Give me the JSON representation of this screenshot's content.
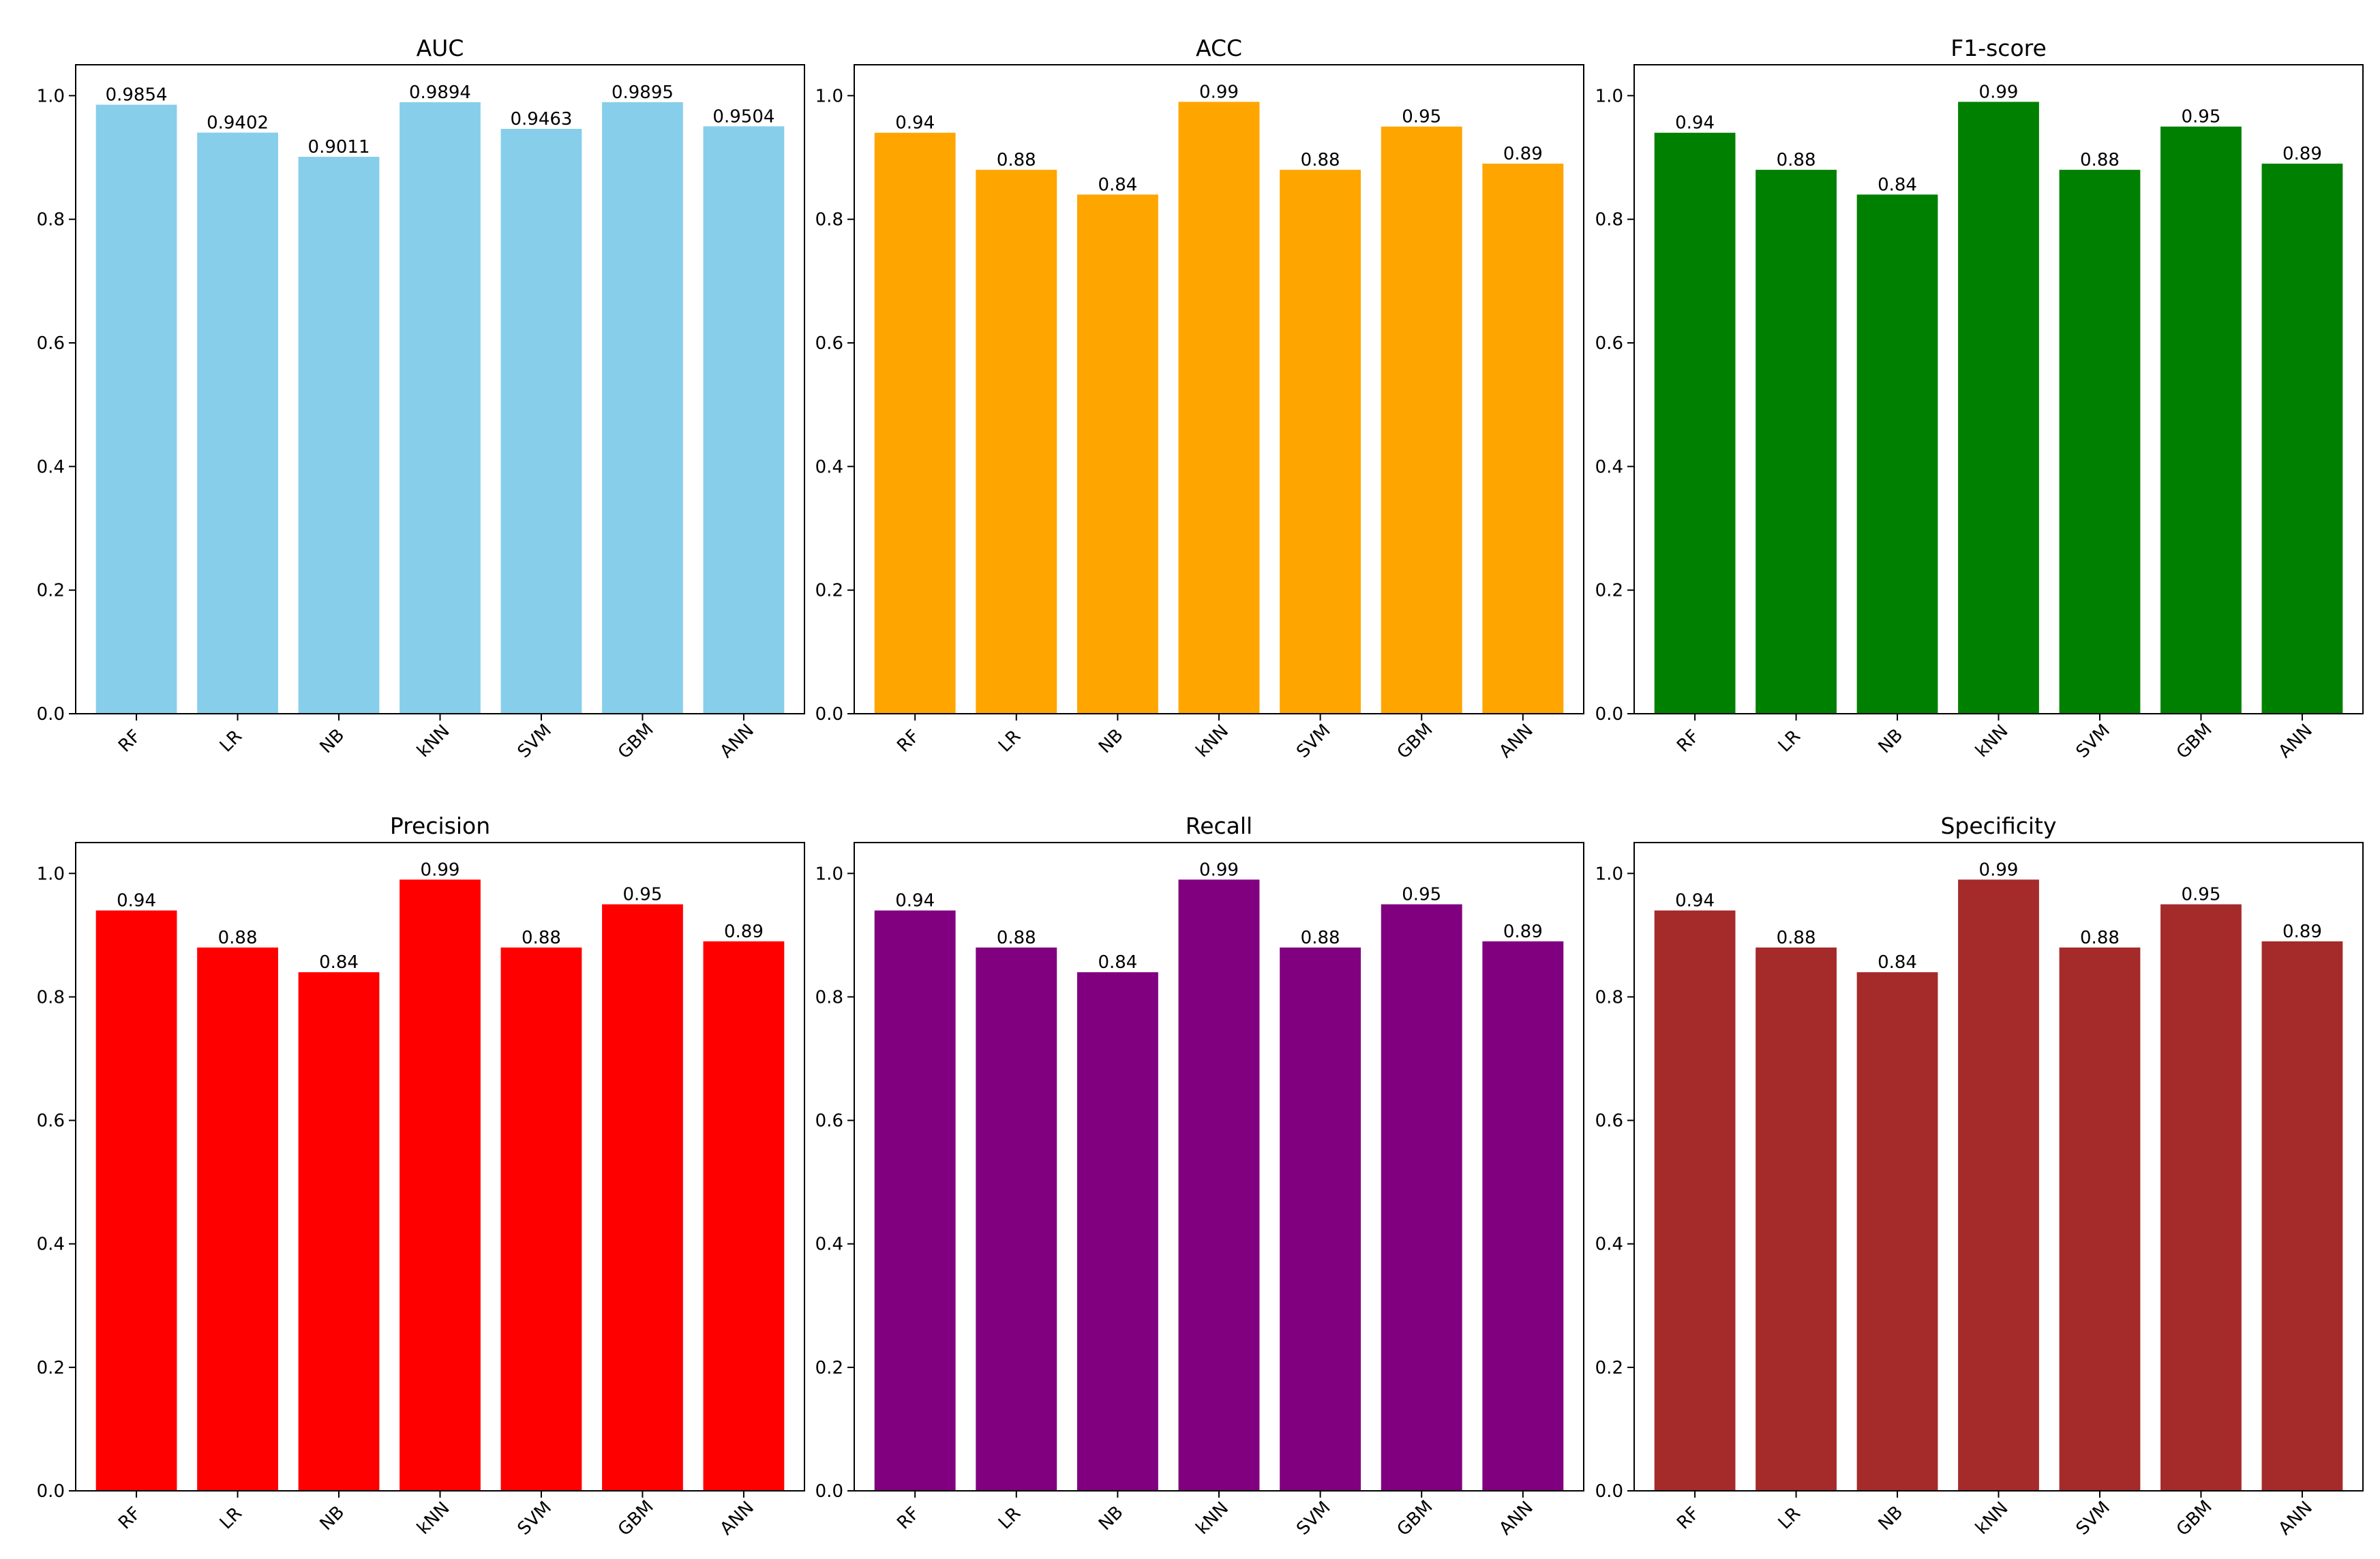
{
  "chart_data": [
    {
      "type": "bar",
      "title": "AUC",
      "color": "#87CEEB",
      "categories": [
        "RF",
        "LR",
        "NB",
        "kNN",
        "SVM",
        "GBM",
        "ANN"
      ],
      "values": [
        0.9854,
        0.9402,
        0.9011,
        0.9894,
        0.9463,
        0.9895,
        0.9504
      ],
      "value_labels": [
        "0.9854",
        "0.9402",
        "0.9011",
        "0.9894",
        "0.9463",
        "0.9895",
        "0.9504"
      ],
      "ylim": [
        0,
        1.05
      ],
      "yticks": [
        "0.0",
        "0.2",
        "0.4",
        "0.6",
        "0.8",
        "1.0"
      ],
      "xlabel": "",
      "ylabel": ""
    },
    {
      "type": "bar",
      "title": "ACC",
      "color": "#FFA500",
      "categories": [
        "RF",
        "LR",
        "NB",
        "kNN",
        "SVM",
        "GBM",
        "ANN"
      ],
      "values": [
        0.94,
        0.88,
        0.84,
        0.99,
        0.88,
        0.95,
        0.89
      ],
      "value_labels": [
        "0.94",
        "0.88",
        "0.84",
        "0.99",
        "0.88",
        "0.95",
        "0.89"
      ],
      "ylim": [
        0,
        1.05
      ],
      "yticks": [
        "0.0",
        "0.2",
        "0.4",
        "0.6",
        "0.8",
        "1.0"
      ],
      "xlabel": "",
      "ylabel": ""
    },
    {
      "type": "bar",
      "title": "F1-score",
      "color": "#008000",
      "categories": [
        "RF",
        "LR",
        "NB",
        "kNN",
        "SVM",
        "GBM",
        "ANN"
      ],
      "values": [
        0.94,
        0.88,
        0.84,
        0.99,
        0.88,
        0.95,
        0.89
      ],
      "value_labels": [
        "0.94",
        "0.88",
        "0.84",
        "0.99",
        "0.88",
        "0.95",
        "0.89"
      ],
      "ylim": [
        0,
        1.05
      ],
      "yticks": [
        "0.0",
        "0.2",
        "0.4",
        "0.6",
        "0.8",
        "1.0"
      ],
      "xlabel": "",
      "ylabel": ""
    },
    {
      "type": "bar",
      "title": "Precision",
      "color": "#FF0000",
      "categories": [
        "RF",
        "LR",
        "NB",
        "kNN",
        "SVM",
        "GBM",
        "ANN"
      ],
      "values": [
        0.94,
        0.88,
        0.84,
        0.99,
        0.88,
        0.95,
        0.89
      ],
      "value_labels": [
        "0.94",
        "0.88",
        "0.84",
        "0.99",
        "0.88",
        "0.95",
        "0.89"
      ],
      "ylim": [
        0,
        1.05
      ],
      "yticks": [
        "0.0",
        "0.2",
        "0.4",
        "0.6",
        "0.8",
        "1.0"
      ],
      "xlabel": "",
      "ylabel": ""
    },
    {
      "type": "bar",
      "title": "Recall",
      "color": "#800080",
      "categories": [
        "RF",
        "LR",
        "NB",
        "kNN",
        "SVM",
        "GBM",
        "ANN"
      ],
      "values": [
        0.94,
        0.88,
        0.84,
        0.99,
        0.88,
        0.95,
        0.89
      ],
      "value_labels": [
        "0.94",
        "0.88",
        "0.84",
        "0.99",
        "0.88",
        "0.95",
        "0.89"
      ],
      "ylim": [
        0,
        1.05
      ],
      "yticks": [
        "0.0",
        "0.2",
        "0.4",
        "0.6",
        "0.8",
        "1.0"
      ],
      "xlabel": "",
      "ylabel": ""
    },
    {
      "type": "bar",
      "title": "Specificity",
      "color": "#A52A2A",
      "categories": [
        "RF",
        "LR",
        "NB",
        "kNN",
        "SVM",
        "GBM",
        "ANN"
      ],
      "values": [
        0.94,
        0.88,
        0.84,
        0.99,
        0.88,
        0.95,
        0.89
      ],
      "value_labels": [
        "0.94",
        "0.88",
        "0.84",
        "0.99",
        "0.88",
        "0.95",
        "0.89"
      ],
      "ylim": [
        0,
        1.05
      ],
      "yticks": [
        "0.0",
        "0.2",
        "0.4",
        "0.6",
        "0.8",
        "1.0"
      ],
      "xlabel": "",
      "ylabel": ""
    }
  ]
}
